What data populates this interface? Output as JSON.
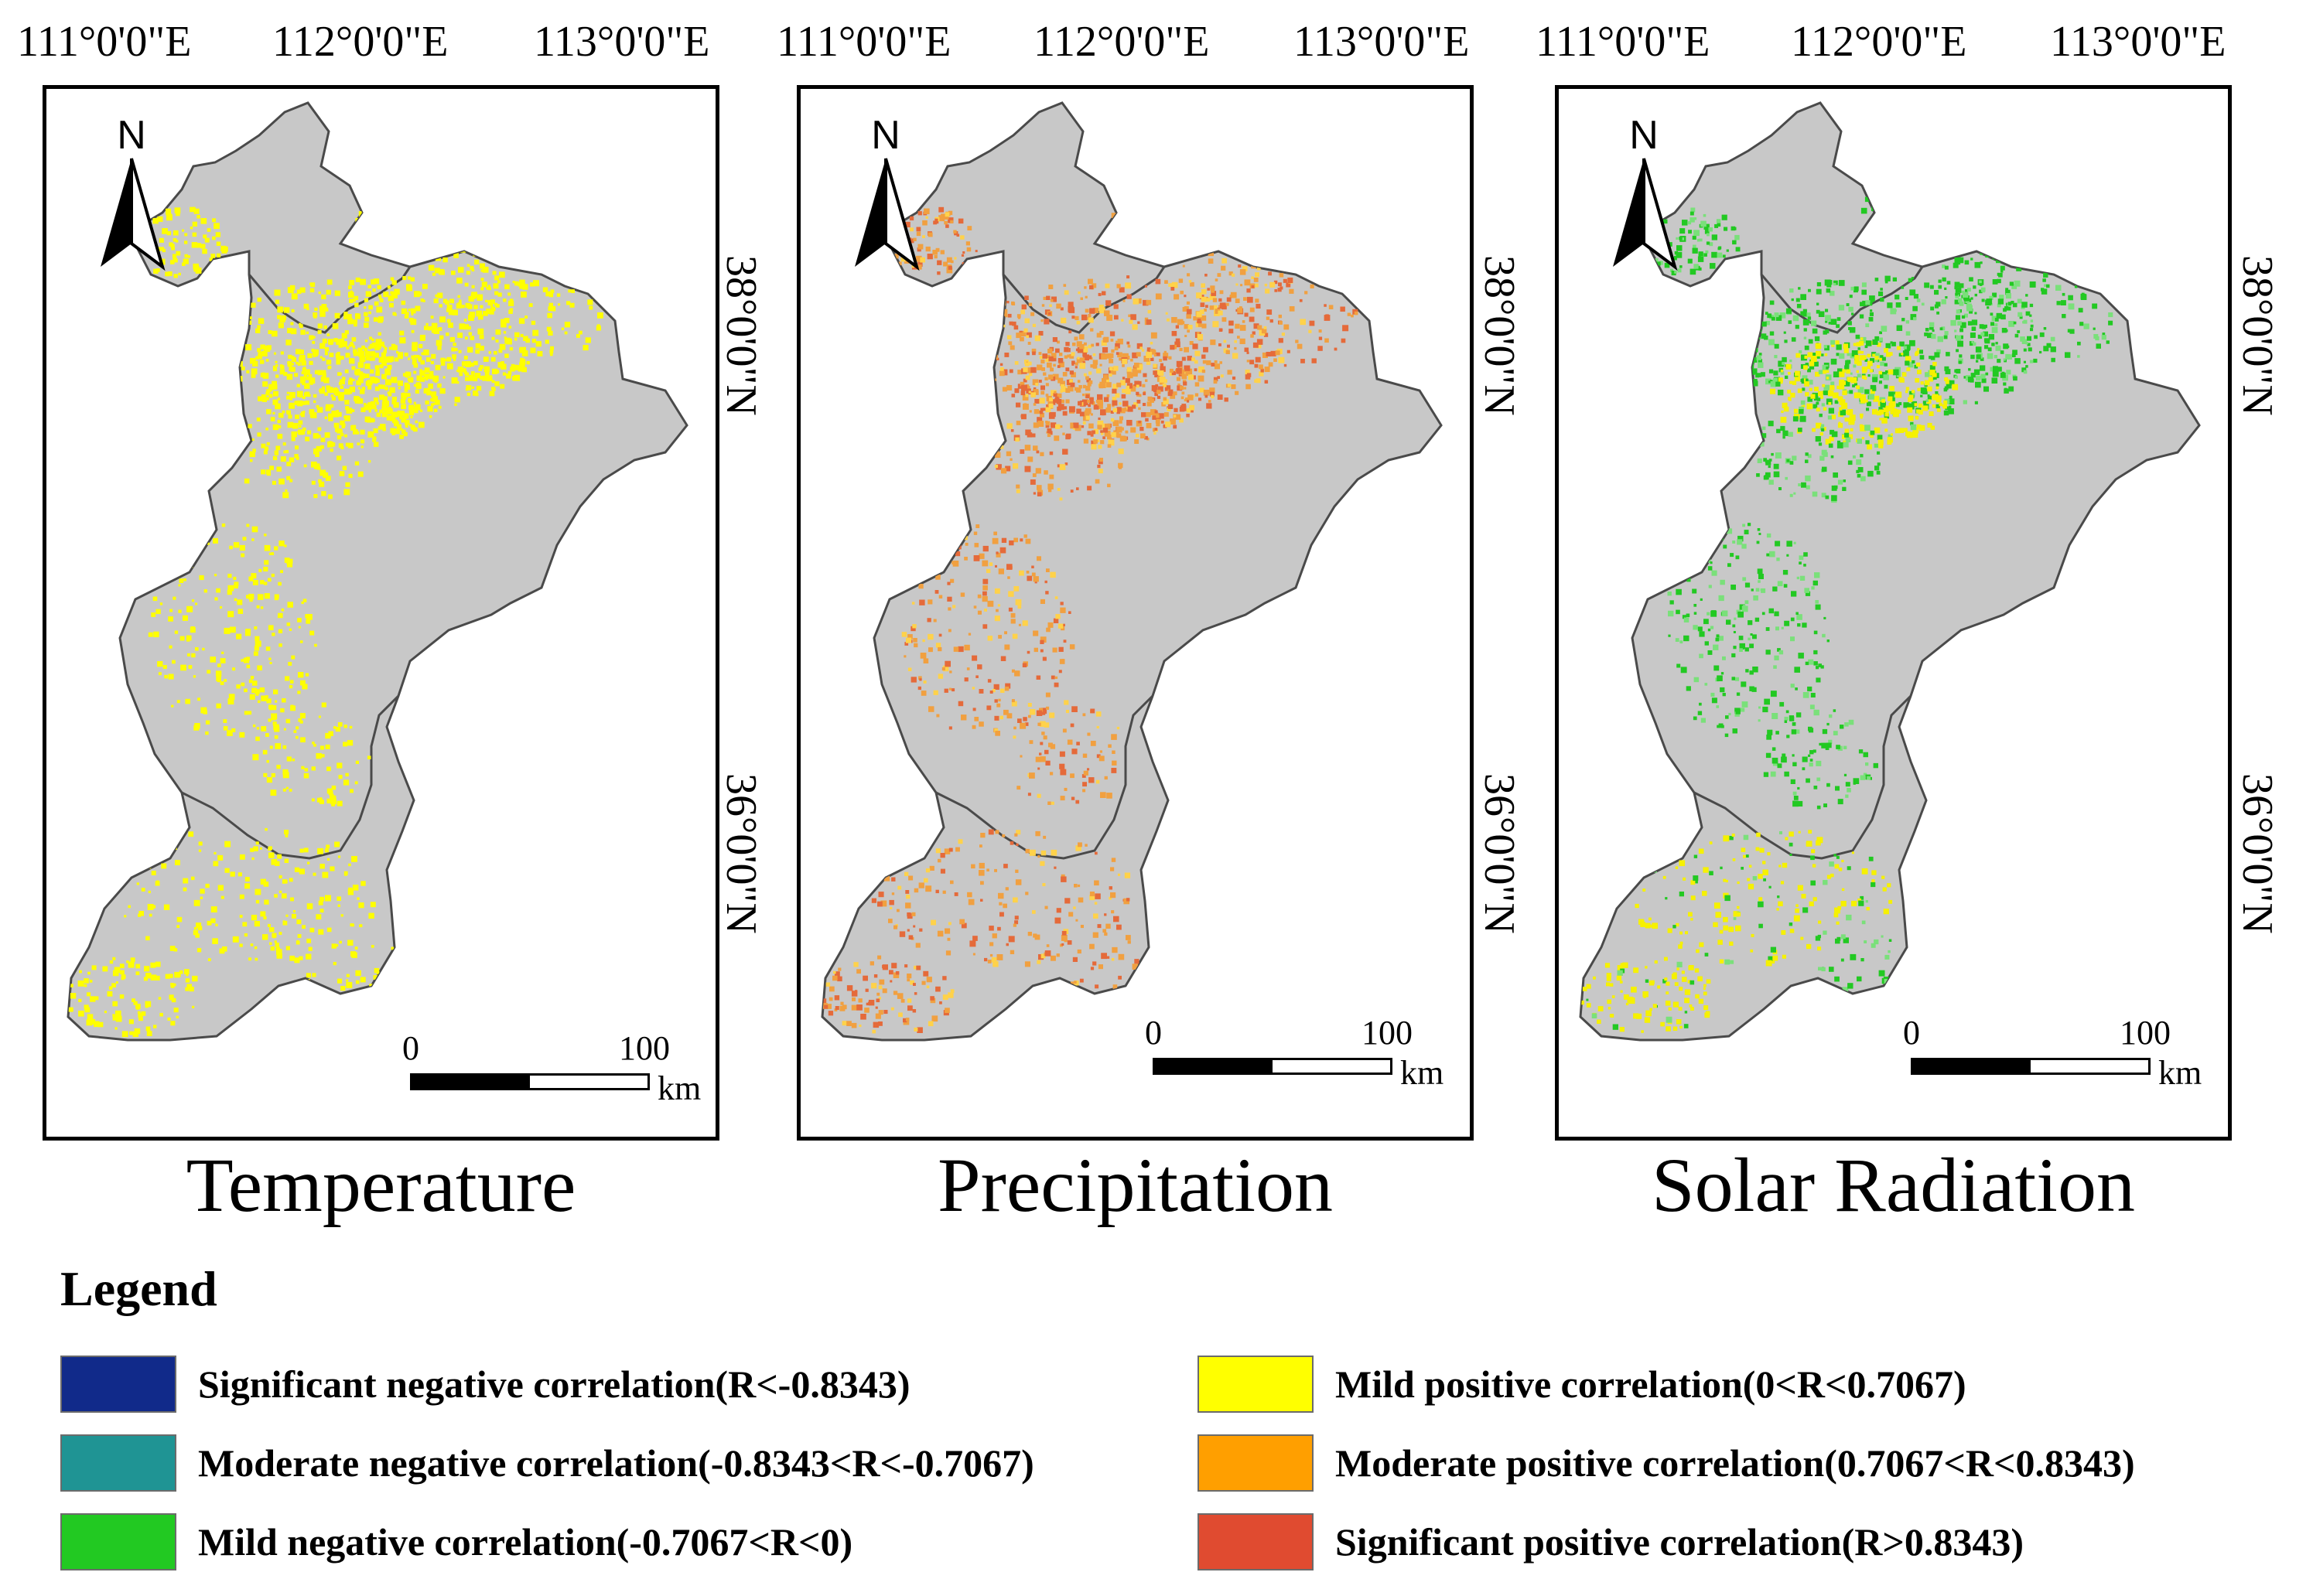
{
  "panels": [
    {
      "title": "Temperature",
      "lon_labels": [
        "111°0'0\"E",
        "112°0'0\"E",
        "113°0'0\"E"
      ],
      "lat_labels": [
        "38°0'0\"N",
        "36°0'0\"N"
      ],
      "north": "N",
      "scale": {
        "start": "0",
        "end": "100",
        "unit": "km"
      },
      "dominant_class": "mild_positive"
    },
    {
      "title": "Precipitation",
      "lon_labels": [
        "111°0'0\"E",
        "112°0'0\"E",
        "113°0'0\"E"
      ],
      "lat_labels": [
        "38°0'0\"N",
        "36°0'0\"N"
      ],
      "north": "N",
      "scale": {
        "start": "0",
        "end": "100",
        "unit": "km"
      },
      "dominant_class": "moderate_positive"
    },
    {
      "title": "Solar Radiation",
      "lon_labels": [
        "111°0'0\"E",
        "112°0'0\"E",
        "113°0'0\"E"
      ],
      "lat_labels": [
        "38°0'0\"N",
        "36°0'0\"N"
      ],
      "north": "N",
      "scale": {
        "start": "0",
        "end": "100",
        "unit": "km"
      },
      "dominant_class": "mild_negative"
    }
  ],
  "legend": {
    "title": "Legend",
    "items": [
      {
        "label": "Significant negative correlation(R<-0.8343)",
        "color": "#112a8a"
      },
      {
        "label": "Moderate negative correlation(-0.8343<R<-0.7067)",
        "color": "#1f9494"
      },
      {
        "label": "Mild negative correlation(-0.7067<R<0)",
        "color": "#22c922"
      },
      {
        "label": "Mild positive correlation(0<R<0.7067)",
        "color": "#ffff00"
      },
      {
        "label": "Moderate positive correlation(0.7067<R<0.8343)",
        "color": "#ff9f00"
      },
      {
        "label": "Significant positive correlation(R>0.8343)",
        "color": "#e04b30"
      }
    ]
  },
  "colors": {
    "land": "#c8c8c8",
    "boundary": "#4a4a4a"
  }
}
